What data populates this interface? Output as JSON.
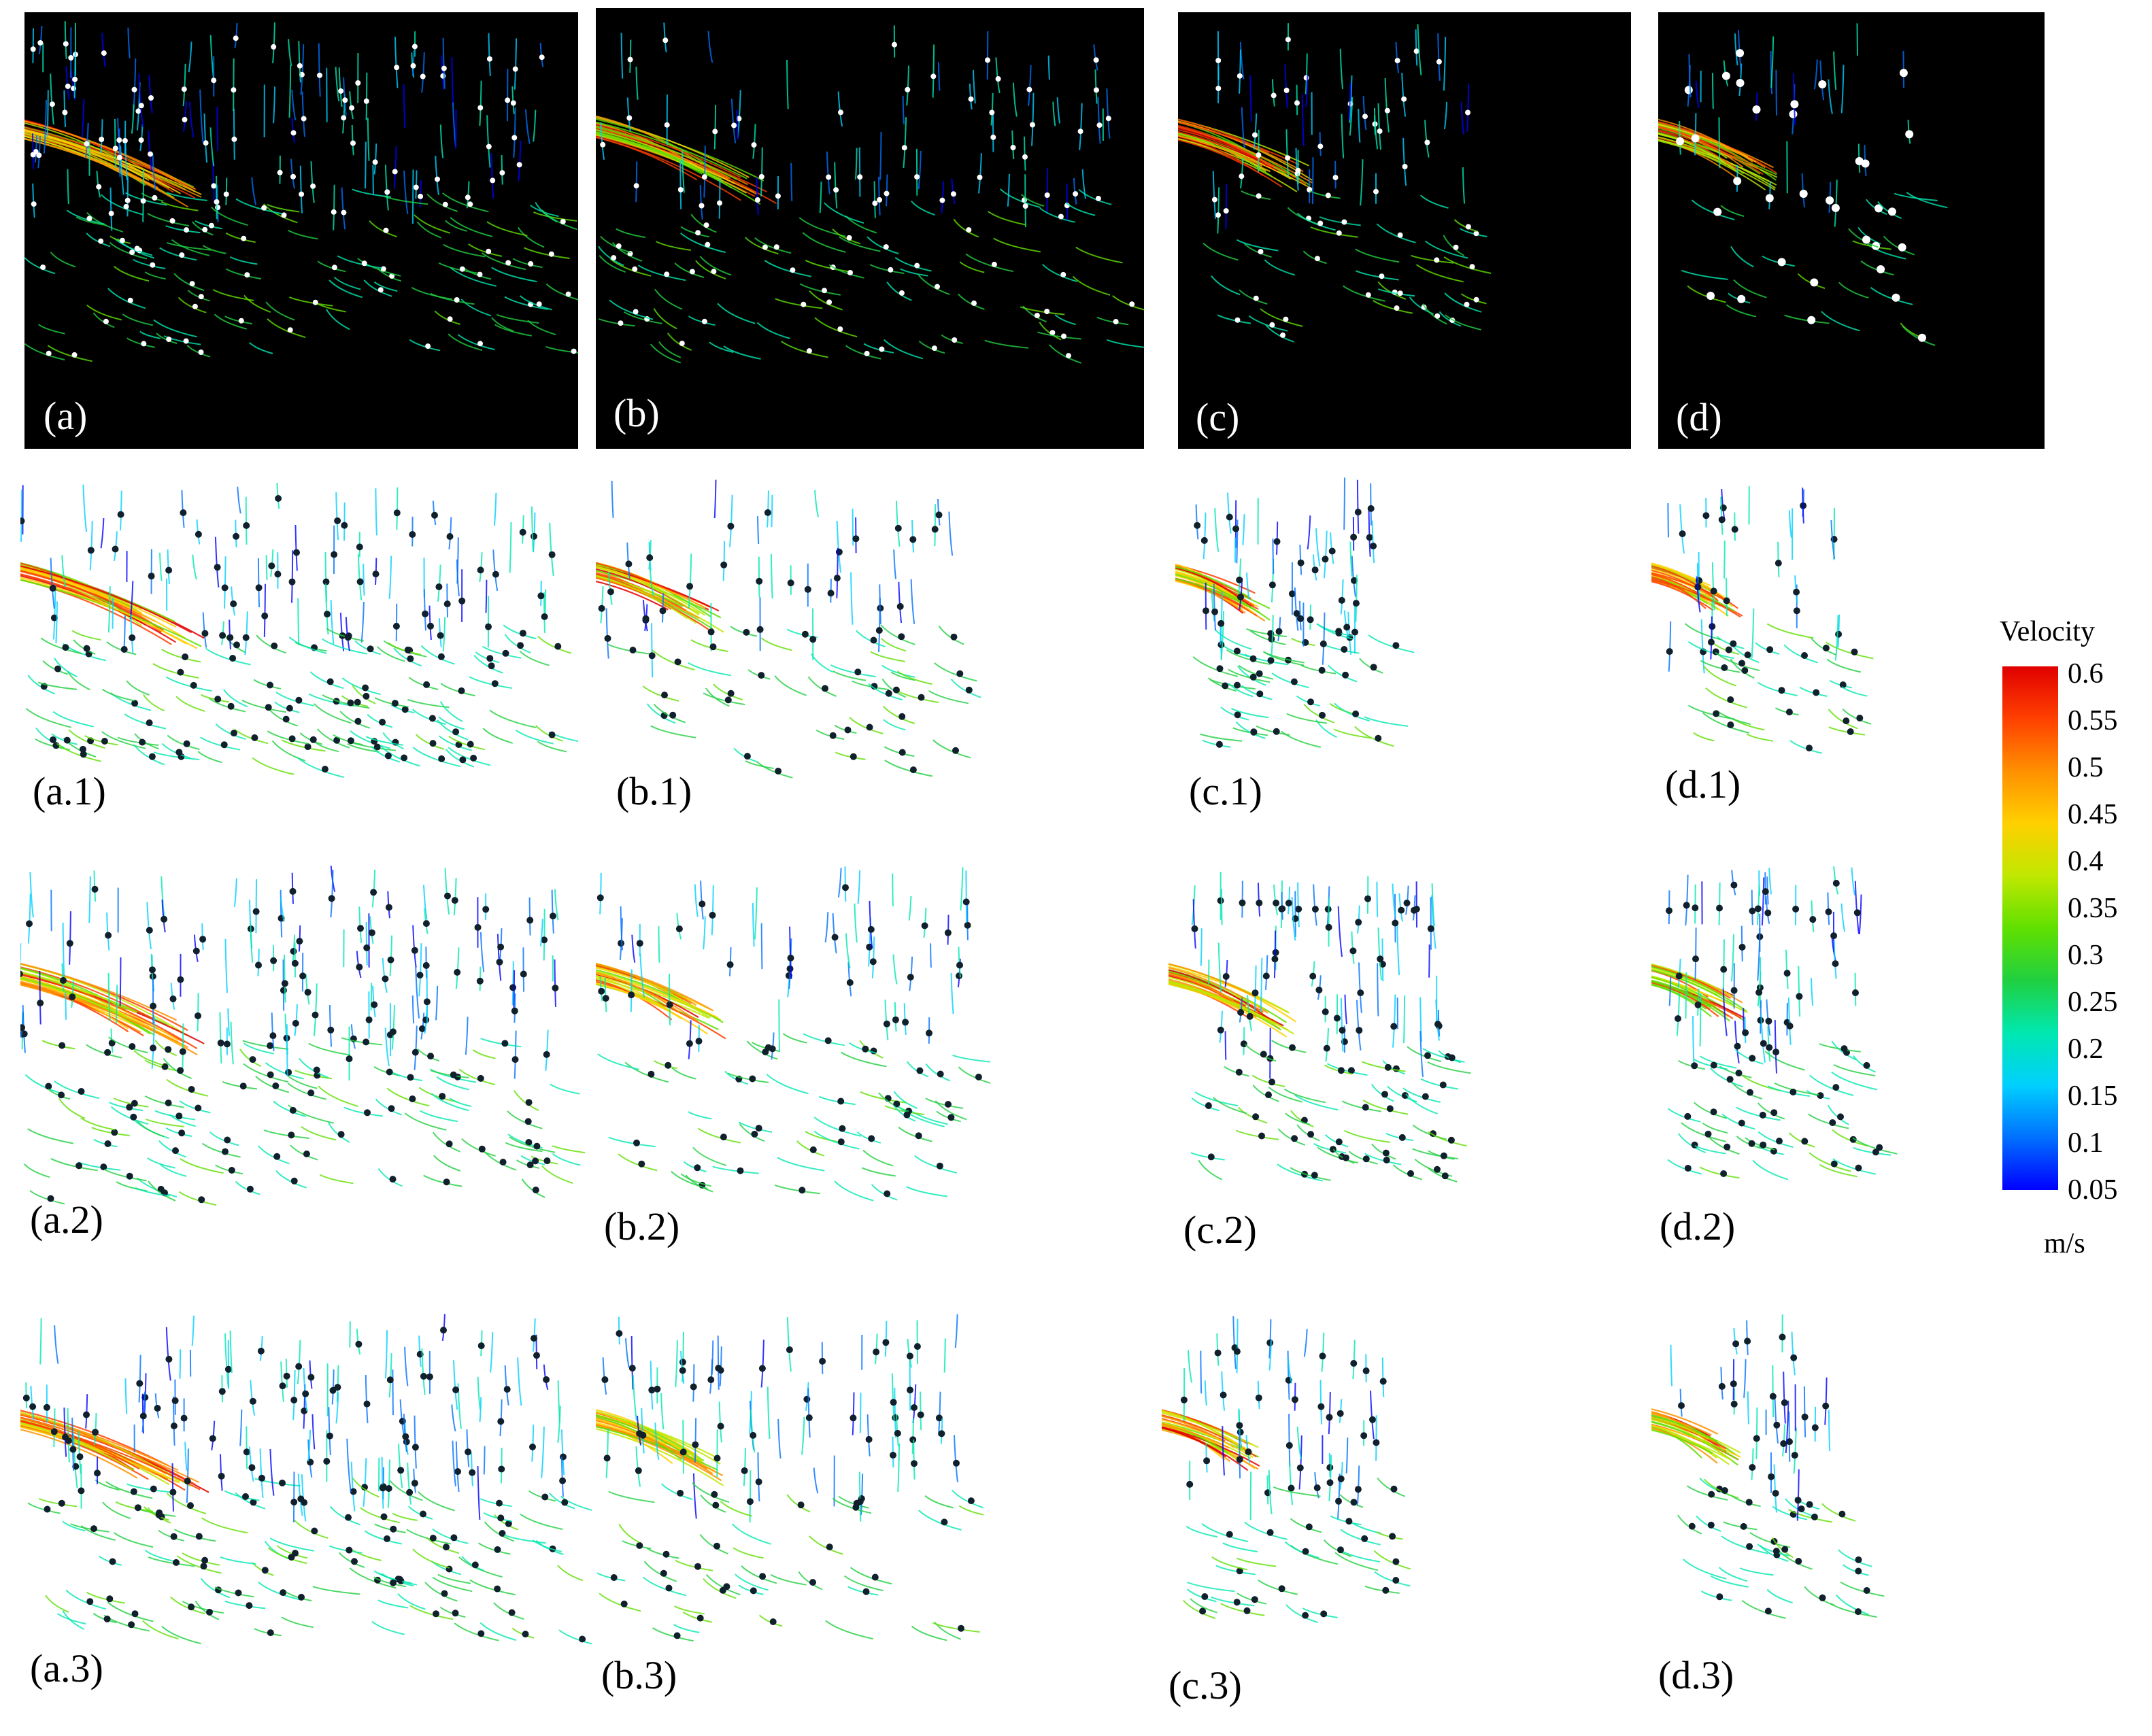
{
  "panels": [
    {
      "label": "(a)",
      "style": "dark",
      "flow": "wide",
      "seed": 11,
      "n": 230
    },
    {
      "label": "(b)",
      "style": "dark",
      "flow": "wide",
      "seed": 12,
      "n": 150
    },
    {
      "label": "(c)",
      "style": "dark",
      "flow": "narrow",
      "seed": 13,
      "n": 90
    },
    {
      "label": "(d)",
      "style": "dark",
      "flow": "narrow",
      "seed": 14,
      "n": 60
    },
    {
      "label": "(a.1)",
      "style": "light",
      "flow": "wide",
      "seed": 21,
      "n": 200
    },
    {
      "label": "(b.1)",
      "style": "light",
      "flow": "wide",
      "seed": 22,
      "n": 90
    },
    {
      "label": "(c.1)",
      "style": "light",
      "flow": "narrow",
      "seed": 23,
      "n": 90
    },
    {
      "label": "(d.1)",
      "style": "light",
      "flow": "narrow",
      "seed": 24,
      "n": 60
    },
    {
      "label": "(a.2)",
      "style": "light",
      "flow": "wide",
      "seed": 31,
      "n": 220
    },
    {
      "label": "(b.2)",
      "style": "light",
      "flow": "wide",
      "seed": 32,
      "n": 110
    },
    {
      "label": "(c.2)",
      "style": "light",
      "flow": "narrow",
      "seed": 33,
      "n": 120
    },
    {
      "label": "(d.2)",
      "style": "light",
      "flow": "narrow",
      "seed": 34,
      "n": 100
    },
    {
      "label": "(a.3)",
      "style": "light",
      "flow": "wide",
      "seed": 41,
      "n": 220
    },
    {
      "label": "(b.3)",
      "style": "light",
      "flow": "wide",
      "seed": 42,
      "n": 110
    },
    {
      "label": "(c.3)",
      "style": "light",
      "flow": "narrow",
      "seed": 43,
      "n": 80
    },
    {
      "label": "(d.3)",
      "style": "light",
      "flow": "narrow",
      "seed": 44,
      "n": 60
    }
  ],
  "colorbar": {
    "title": "Velocity",
    "unit": "m/s",
    "min": 0.05,
    "max": 0.6,
    "ticks": [
      "0.6",
      "0.55",
      "0.5",
      "0.45",
      "0.4",
      "0.35",
      "0.3",
      "0.25",
      "0.2",
      "0.15",
      "0.1",
      "0.05"
    ],
    "colors": [
      "#0000ff",
      "#0070ff",
      "#00d0ff",
      "#00e8b0",
      "#20d040",
      "#60e000",
      "#c0e800",
      "#ffd000",
      "#ff9000",
      "#ff4000",
      "#e00000"
    ]
  }
}
